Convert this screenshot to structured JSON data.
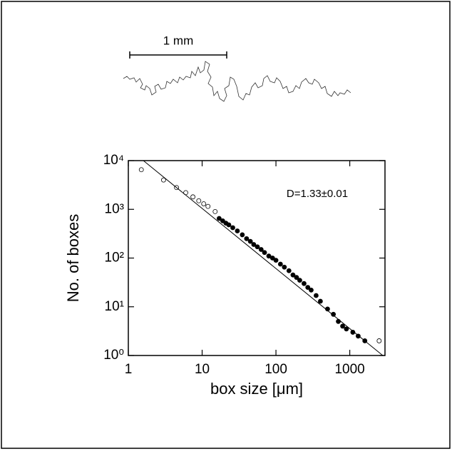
{
  "scale_bar": {
    "label": "1 mm"
  },
  "chart_data": {
    "type": "scatter",
    "xlabel": "box size [μm]",
    "ylabel": "No. of boxes",
    "annotation": "D=1.33±0.01",
    "xscale": "log",
    "yscale": "log",
    "xlim": [
      1,
      3000
    ],
    "ylim": [
      1,
      10000
    ],
    "xticks": [
      1,
      10,
      100,
      1000
    ],
    "yticks": [
      {
        "value": 1,
        "label": "10⁰"
      },
      {
        "value": 10,
        "label": "10¹"
      },
      {
        "value": 100,
        "label": "10²"
      },
      {
        "value": 1000,
        "label": "10³"
      },
      {
        "value": 10000,
        "label": "10⁴"
      }
    ],
    "series": [
      {
        "marker": "open",
        "color": "#000000",
        "x": [
          1.5,
          3,
          4.5,
          6,
          7.5,
          9,
          10.5,
          12,
          15,
          2500
        ],
        "values": [
          6500,
          4000,
          2800,
          2200,
          1800,
          1500,
          1300,
          1150,
          900,
          2
        ]
      },
      {
        "marker": "filled",
        "color": "#000000",
        "x": [
          17,
          19,
          21,
          23,
          26,
          30,
          35,
          40,
          45,
          50,
          56,
          63,
          70,
          80,
          90,
          100,
          115,
          130,
          150,
          170,
          190,
          210,
          240,
          270,
          300,
          350,
          400,
          500,
          600,
          700,
          800,
          900,
          1100,
          1300,
          1600
        ],
        "values": [
          650,
          580,
          520,
          480,
          420,
          360,
          300,
          250,
          220,
          190,
          170,
          150,
          130,
          110,
          100,
          90,
          75,
          65,
          55,
          45,
          40,
          35,
          30,
          25,
          22,
          17,
          13,
          9,
          7,
          5,
          4,
          3.5,
          3,
          2.5,
          2
        ]
      }
    ],
    "fit": {
      "x": [
        1.6,
        2800
      ],
      "values": [
        10000,
        1
      ],
      "color": "#000000"
    }
  }
}
